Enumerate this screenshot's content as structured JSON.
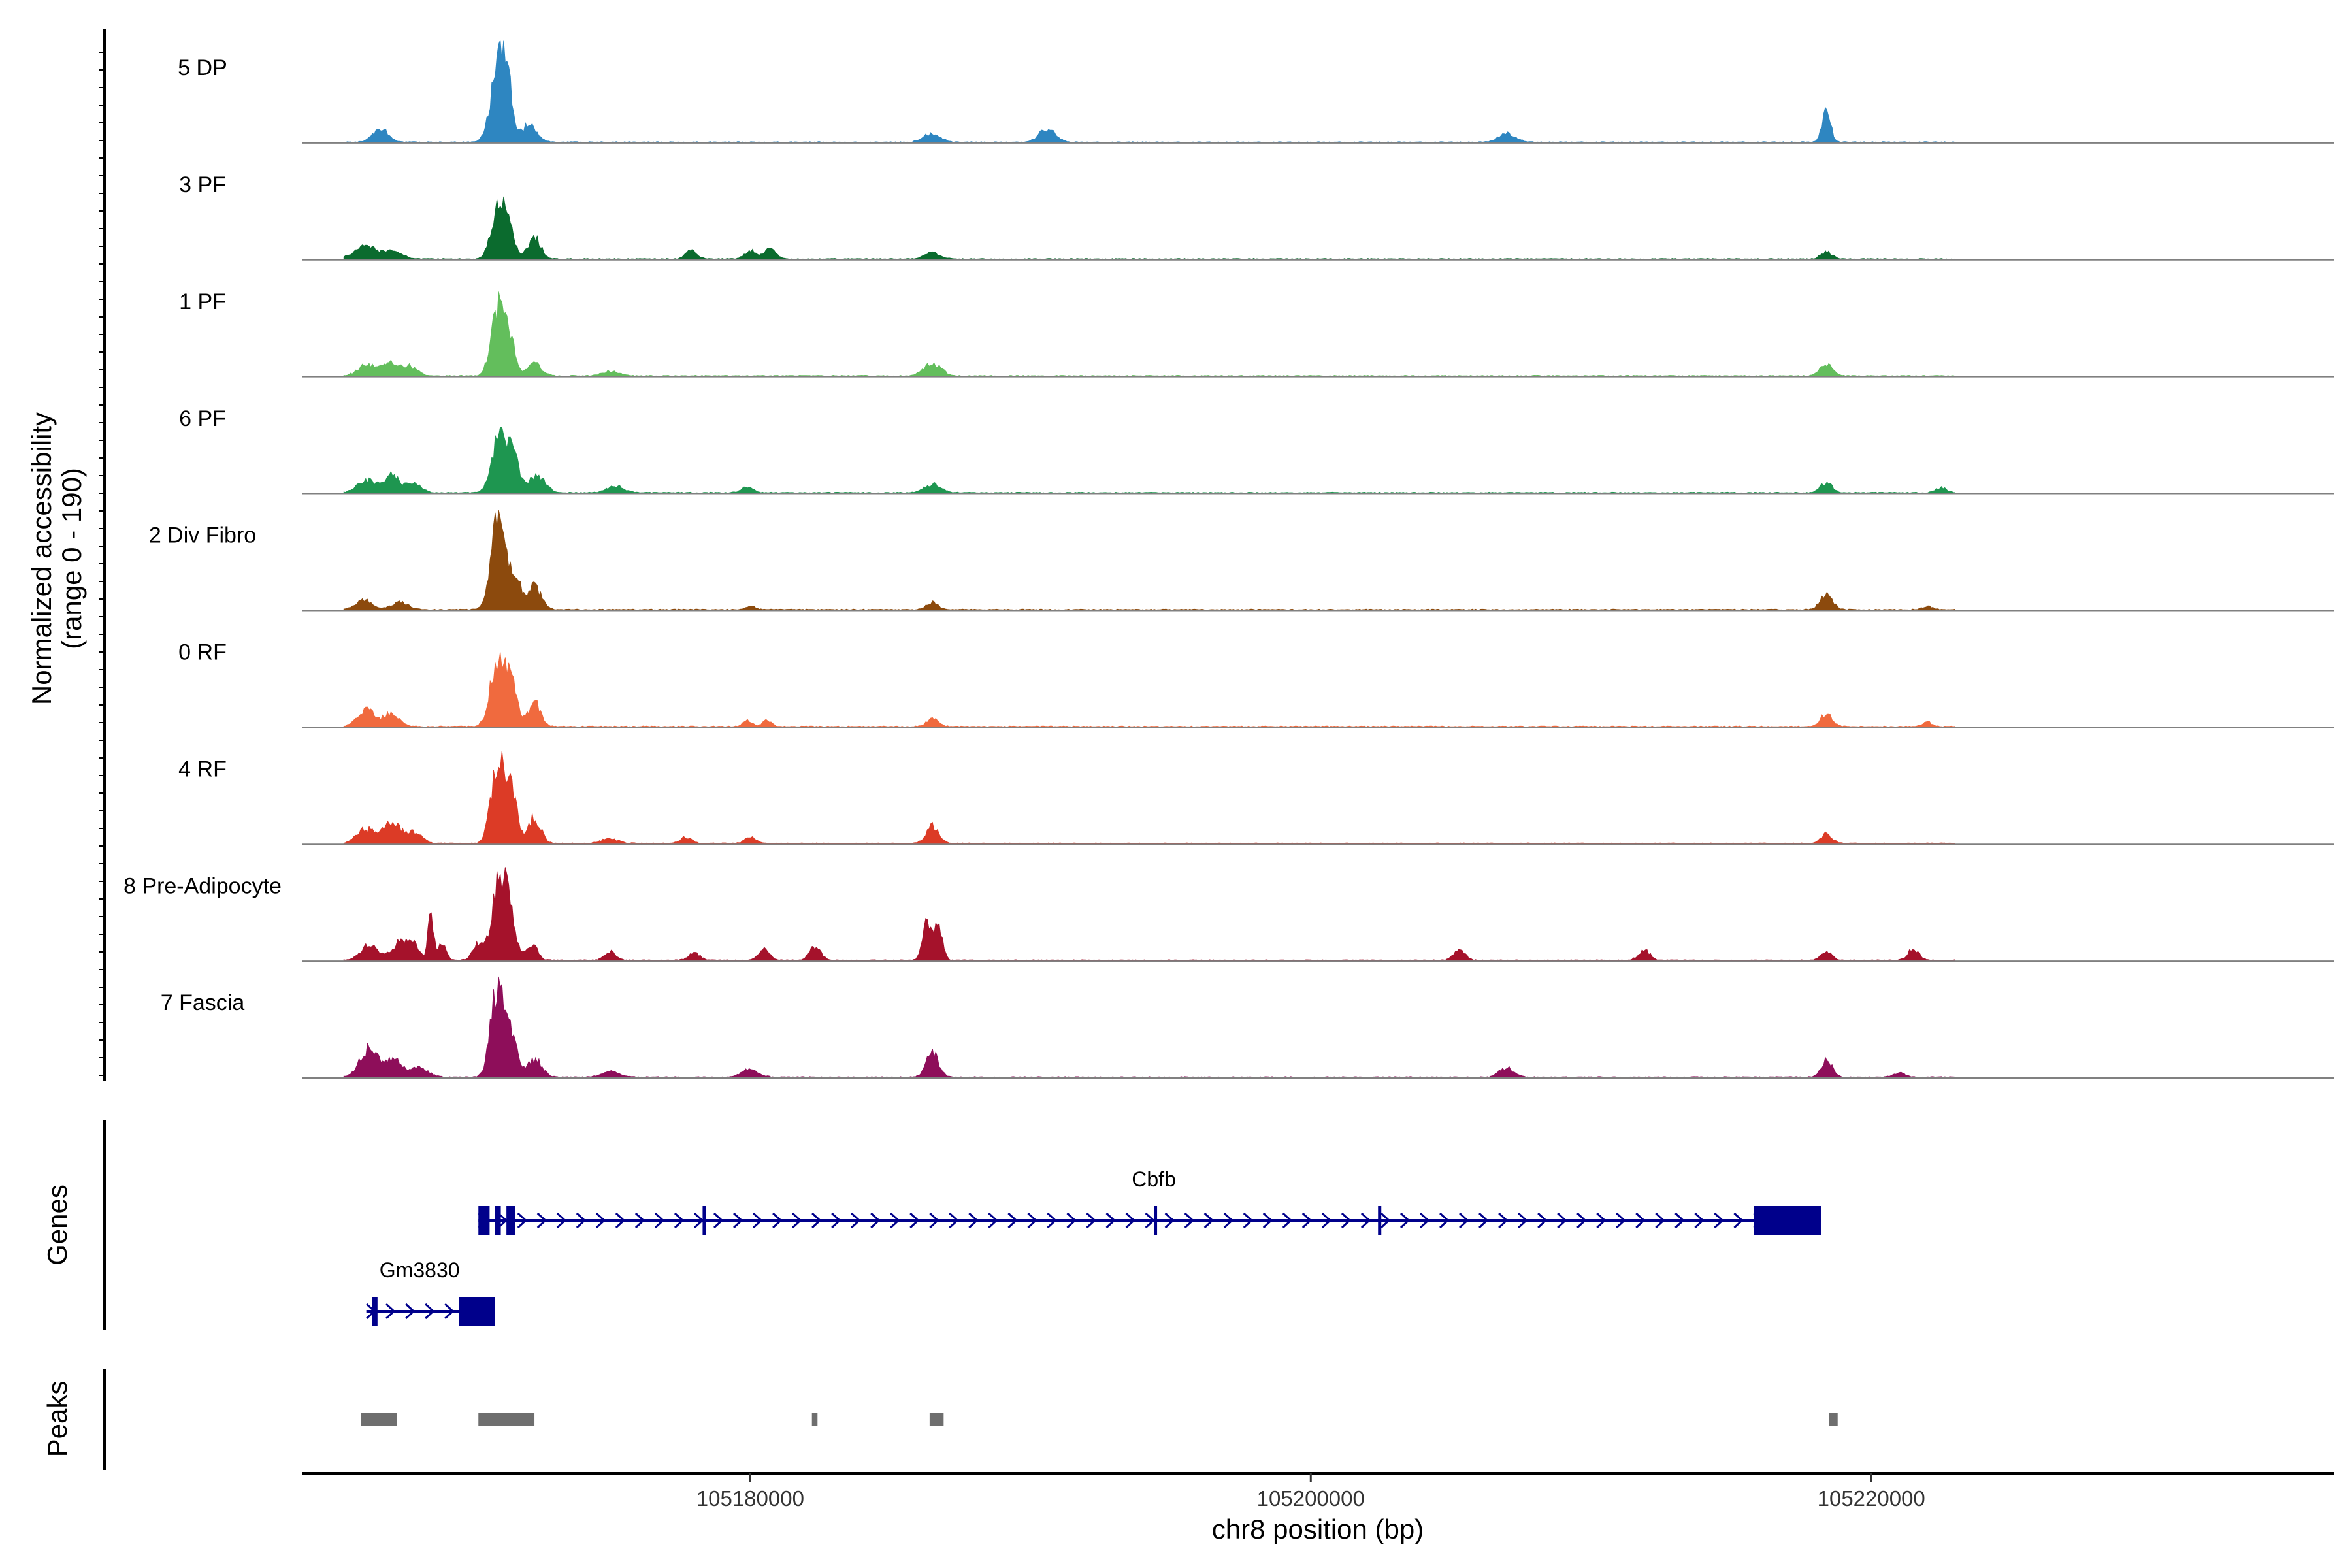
{
  "chart_data": {
    "type": "area",
    "region": "chr8",
    "x_range": [
      105164000,
      105236500
    ],
    "tracks": {
      "ylabel": "Normalized accessibility",
      "ylabel_range": "(range 0 - 190)",
      "ylim": [
        0,
        190
      ],
      "groups": [
        {
          "name": "5 DP",
          "color": "#2E86C1",
          "peaks": [
            [
              105166800,
              22,
              280
            ],
            [
              105171000,
              130,
              260
            ],
            [
              105171300,
              85,
              180
            ],
            [
              105172100,
              30,
              280
            ],
            [
              105186500,
              15,
              300
            ],
            [
              105190600,
              22,
              300
            ],
            [
              105207000,
              15,
              300
            ],
            [
              105218400,
              50,
              150
            ]
          ]
        },
        {
          "name": "3 PF",
          "color": "#0B6B2E",
          "peaks": [
            [
              105166300,
              24,
              400
            ],
            [
              105167300,
              12,
              300
            ],
            [
              105171000,
              95,
              240
            ],
            [
              105171400,
              55,
              180
            ],
            [
              105172300,
              40,
              220
            ],
            [
              105177900,
              14,
              200
            ],
            [
              105180000,
              14,
              200
            ],
            [
              105180700,
              18,
              200
            ],
            [
              105186500,
              12,
              260
            ],
            [
              105218400,
              12,
              200
            ]
          ]
        },
        {
          "name": "1 PF",
          "color": "#63BE5C",
          "peaks": [
            [
              105166300,
              18,
              300
            ],
            [
              105167100,
              22,
              300
            ],
            [
              105167800,
              16,
              300
            ],
            [
              105171000,
              110,
              240
            ],
            [
              105171400,
              60,
              200
            ],
            [
              105172300,
              20,
              260
            ],
            [
              105175000,
              8,
              300
            ],
            [
              105186500,
              22,
              300
            ],
            [
              105218400,
              20,
              220
            ]
          ]
        },
        {
          "name": "6 PF",
          "color": "#1E9650",
          "peaks": [
            [
              105166300,
              22,
              320
            ],
            [
              105167200,
              30,
              280
            ],
            [
              105168000,
              16,
              260
            ],
            [
              105171000,
              90,
              240
            ],
            [
              105171500,
              70,
              220
            ],
            [
              105172400,
              30,
              280
            ],
            [
              105175200,
              12,
              300
            ],
            [
              105179900,
              10,
              200
            ],
            [
              105186500,
              14,
              300
            ],
            [
              105218400,
              18,
              200
            ],
            [
              105222500,
              8,
              200
            ]
          ]
        },
        {
          "name": "2 Div Fibro",
          "color": "#8C4A0D",
          "peaks": [
            [
              105166200,
              16,
              300
            ],
            [
              105167500,
              12,
              300
            ],
            [
              105171000,
              165,
              240
            ],
            [
              105171600,
              60,
              200
            ],
            [
              105172300,
              40,
              240
            ],
            [
              105180000,
              5,
              200
            ],
            [
              105186500,
              12,
              200
            ],
            [
              105218400,
              26,
              220
            ],
            [
              105222000,
              5,
              200
            ]
          ]
        },
        {
          "name": "0 RF",
          "color": "#F06A3E",
          "peaks": [
            [
              105166300,
              30,
              300
            ],
            [
              105167200,
              22,
              280
            ],
            [
              105171000,
              120,
              260
            ],
            [
              105171500,
              70,
              200
            ],
            [
              105172300,
              40,
              220
            ],
            [
              105179900,
              12,
              150
            ],
            [
              105180600,
              12,
              150
            ],
            [
              105186500,
              14,
              200
            ],
            [
              105218400,
              22,
              200
            ],
            [
              105222000,
              8,
              150
            ]
          ]
        },
        {
          "name": "4 RF",
          "color": "#DC3B26",
          "peaks": [
            [
              105166300,
              24,
              320
            ],
            [
              105167200,
              36,
              300
            ],
            [
              105168000,
              18,
              280
            ],
            [
              105171000,
              140,
              240
            ],
            [
              105171500,
              80,
              200
            ],
            [
              105172300,
              45,
              220
            ],
            [
              105175000,
              8,
              300
            ],
            [
              105177700,
              10,
              200
            ],
            [
              105180000,
              10,
              200
            ],
            [
              105186500,
              30,
              220
            ],
            [
              105218400,
              16,
              200
            ]
          ]
        },
        {
          "name": "8 Pre-Adipocyte",
          "color": "#A5122B",
          "peaks": [
            [
              105166400,
              26,
              300
            ],
            [
              105167500,
              30,
              300
            ],
            [
              105168000,
              24,
              200
            ],
            [
              105168600,
              80,
              100
            ],
            [
              105169000,
              26,
              150
            ],
            [
              105170300,
              28,
              200
            ],
            [
              105171000,
              125,
              240
            ],
            [
              105171400,
              90,
              200
            ],
            [
              105172200,
              30,
              200
            ],
            [
              105175000,
              15,
              200
            ],
            [
              105178000,
              12,
              200
            ],
            [
              105180500,
              18,
              200
            ],
            [
              105182300,
              24,
              200
            ],
            [
              105186300,
              60,
              150
            ],
            [
              105186700,
              60,
              150
            ],
            [
              105205300,
              18,
              200
            ],
            [
              105211900,
              18,
              200
            ],
            [
              105218400,
              14,
              200
            ],
            [
              105221500,
              18,
              200
            ]
          ]
        },
        {
          "name": "7 Fascia",
          "color": "#8E0E5A",
          "peaks": [
            [
              105166400,
              50,
              320
            ],
            [
              105167300,
              30,
              280
            ],
            [
              105168200,
              16,
              300
            ],
            [
              105171000,
              165,
              240
            ],
            [
              105171500,
              60,
              200
            ],
            [
              105172300,
              30,
              260
            ],
            [
              105175000,
              10,
              300
            ],
            [
              105180000,
              14,
              300
            ],
            [
              105186500,
              42,
              220
            ],
            [
              105207000,
              16,
              260
            ],
            [
              105218400,
              28,
              200
            ],
            [
              105221000,
              8,
              200
            ]
          ]
        }
      ]
    },
    "genes": {
      "ylabel": "Genes",
      "items": [
        {
          "name": "Cbfb",
          "start": 105170300,
          "end": 105218200,
          "strand": "+",
          "exons": [
            [
              105170300,
              105170700
            ],
            [
              105170900,
              105171100
            ],
            [
              105171300,
              105171600
            ],
            [
              105178300,
              105178400
            ],
            [
              105194400,
              105194500
            ],
            [
              105202400,
              105202500
            ],
            [
              105215800,
              105218200
            ]
          ]
        },
        {
          "name": "Gm3830",
          "start": 105166300,
          "end": 105170900,
          "strand": "+",
          "exons": [
            [
              105166500,
              105166700
            ],
            [
              105169600,
              105170900
            ]
          ]
        }
      ]
    },
    "peaks_track": {
      "ylabel": "Peaks",
      "regions": [
        [
          105166100,
          105167400
        ],
        [
          105170300,
          105172300
        ],
        [
          105182200,
          105182400
        ],
        [
          105186400,
          105186900
        ],
        [
          105218500,
          105218800
        ]
      ]
    },
    "xaxis": {
      "label": "chr8 position (bp)",
      "ticks": [
        105180000,
        105200000,
        105220000
      ],
      "tick_labels": [
        "105180000",
        "105200000",
        "105220000"
      ]
    }
  }
}
